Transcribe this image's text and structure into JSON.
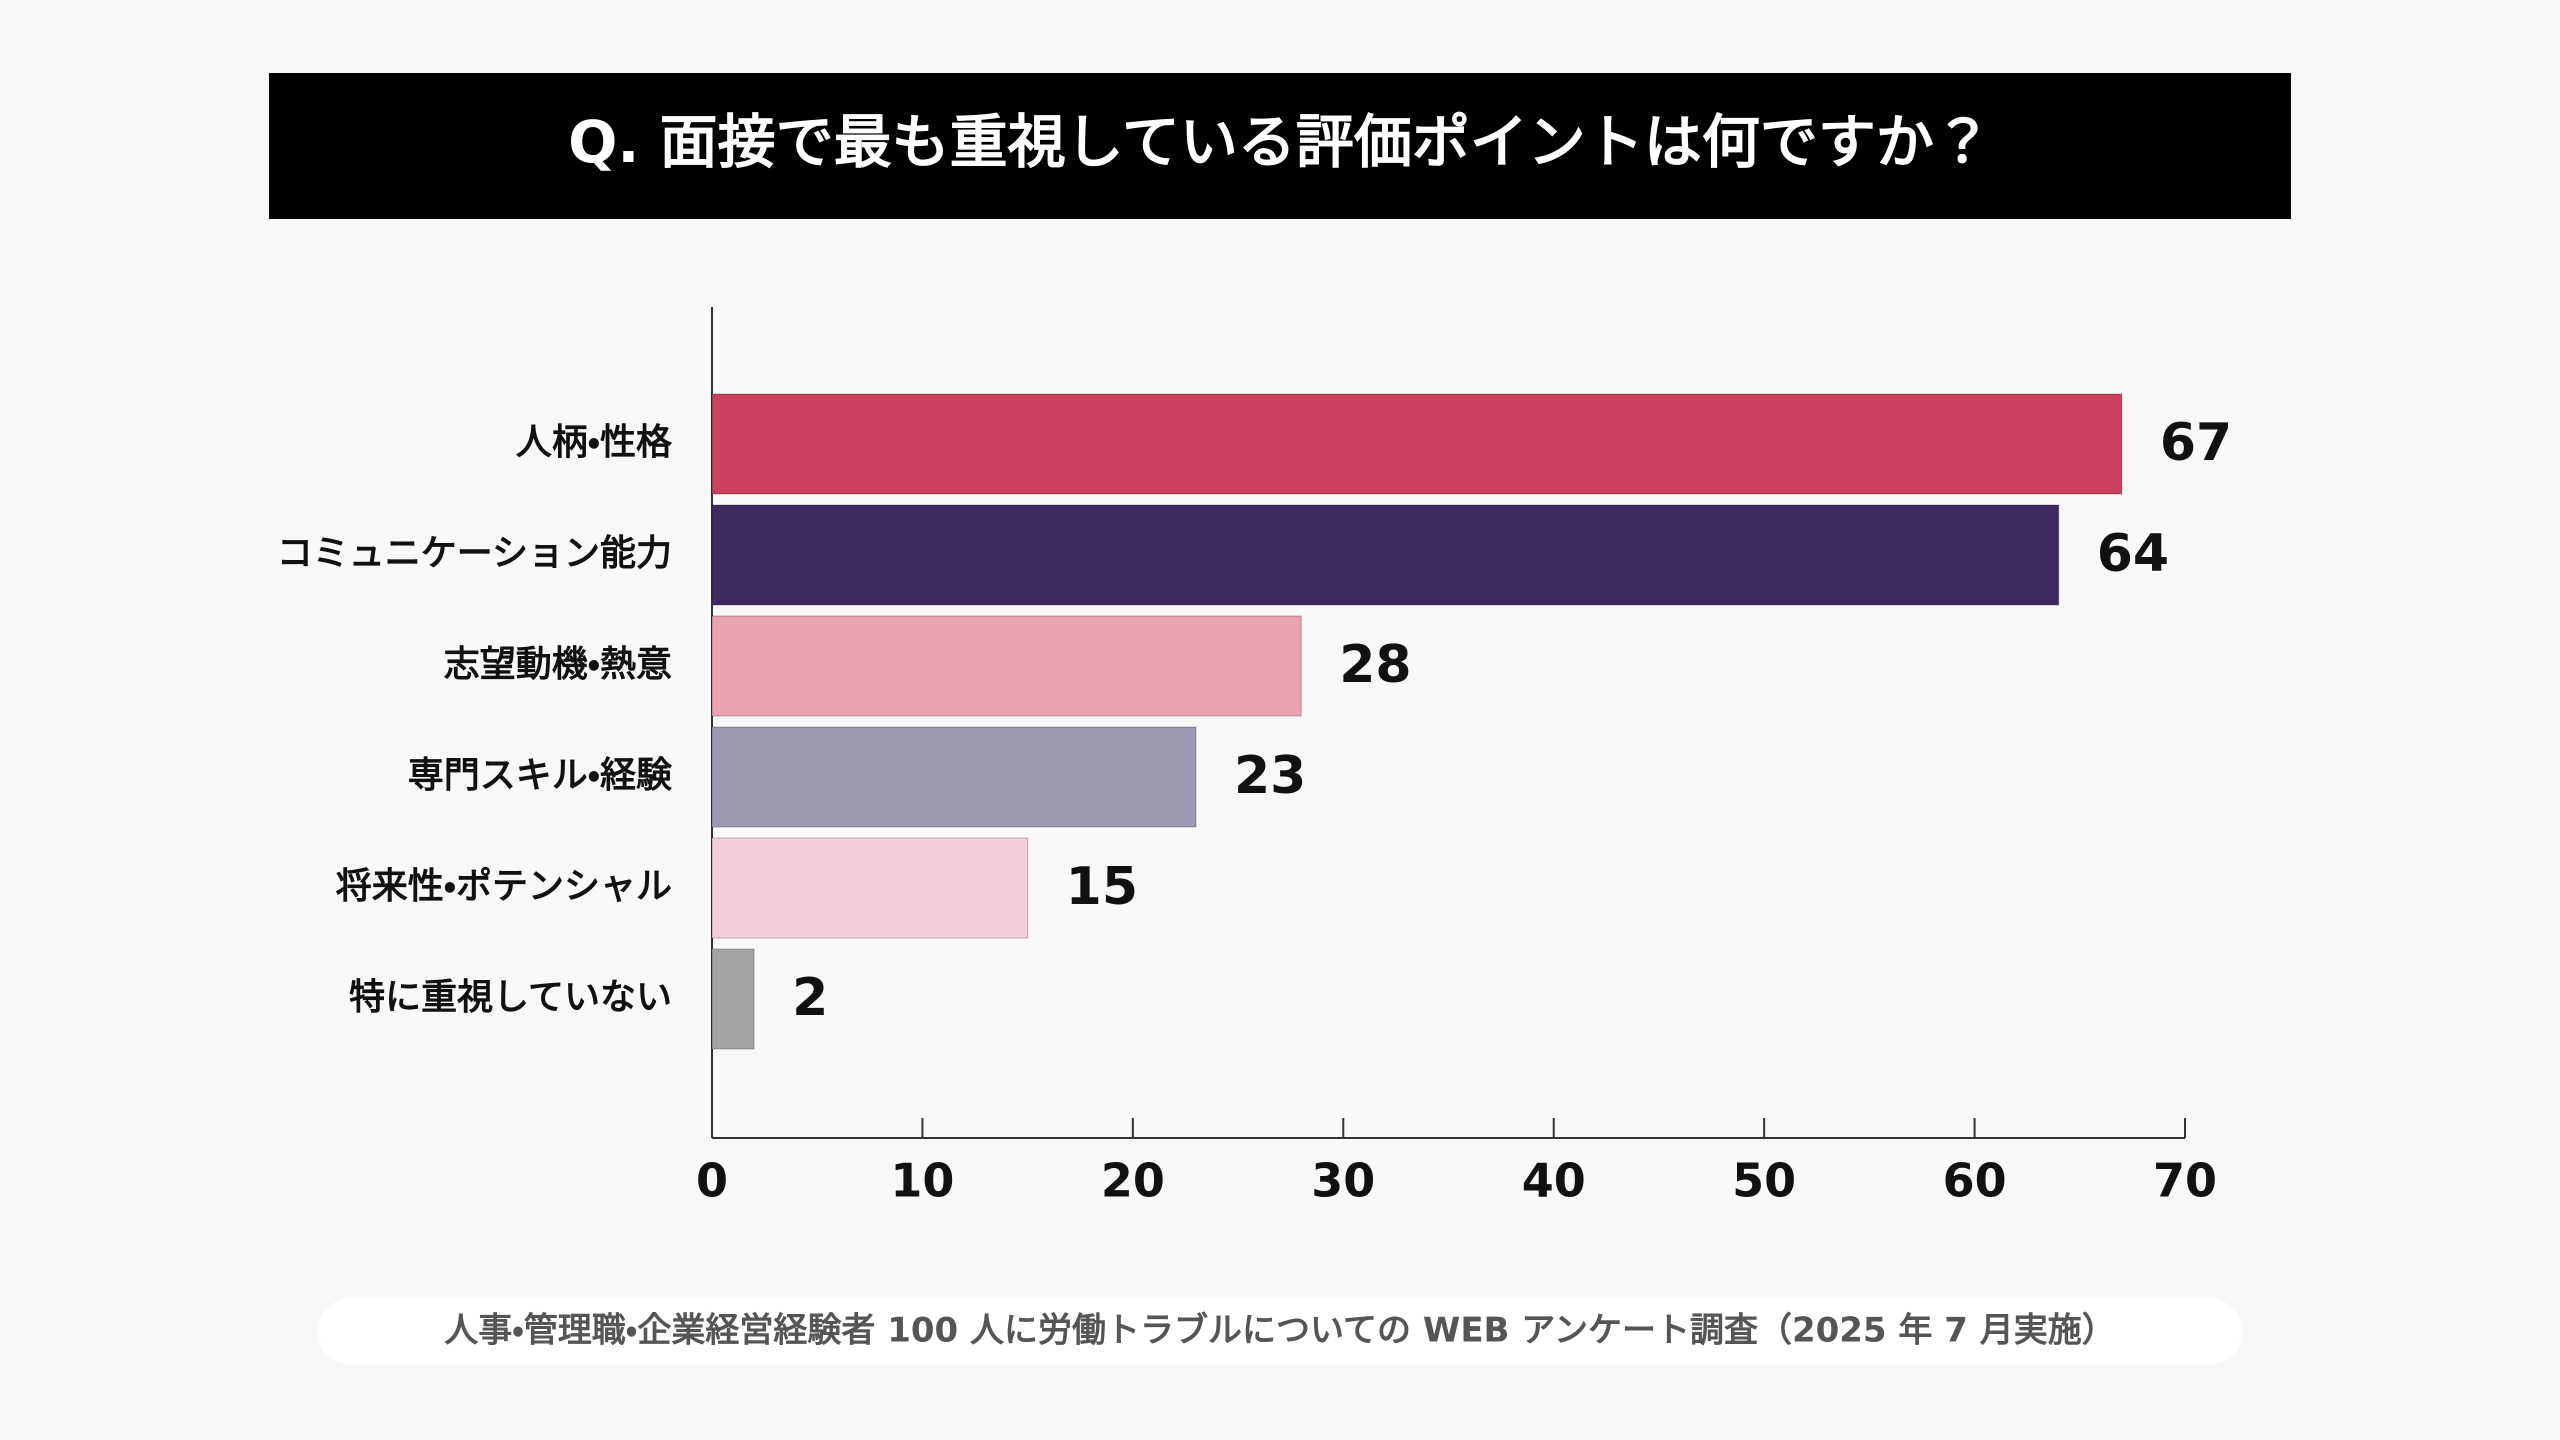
{
  "chart_data": {
    "type": "bar",
    "orientation": "horizontal",
    "title": "Q. 面接で最も重視している評価ポイントは何ですか？",
    "categories": [
      "人柄・性格",
      "コミュニケーション能力",
      "志望動機・熱意",
      "専門スキル・経験",
      "将来性・ポテンシャル",
      "特に重視していない"
    ],
    "values": [
      67,
      64,
      28,
      23,
      15,
      2
    ],
    "colors": [
      "#cc415f",
      "#3e2960",
      "#e6a2b0",
      "#9e97b0",
      "#f3cdd7",
      "#a3a3a3"
    ],
    "xlim": [
      0,
      70
    ],
    "xticks": [
      0,
      10,
      20,
      30,
      40,
      50,
      60,
      70
    ],
    "note": "人事・管理職・企業経営経験者 100 人に労働トラブルについての WEB アンケート調査（2025 年 7 月実施）"
  }
}
